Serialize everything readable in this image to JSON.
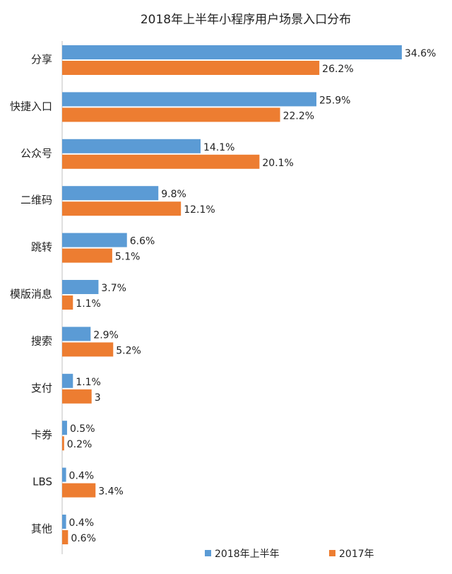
{
  "chart_data": {
    "type": "bar",
    "orientation": "horizontal",
    "title": "2018年上半年小程序用户场景入口分布",
    "categories": [
      "分享",
      "快捷入口",
      "公众号",
      "二维码",
      "跳转",
      "模版消息",
      "搜索",
      "支付",
      "卡券",
      "LBS",
      "其他"
    ],
    "series": [
      {
        "name": "2018年上半年",
        "color": "#5b9bd5",
        "values": [
          34.6,
          25.9,
          14.1,
          9.8,
          6.6,
          3.7,
          2.9,
          1.1,
          0.5,
          0.4,
          0.4
        ],
        "labels": [
          "34.6%",
          "25.9%",
          "14.1%",
          "9.8%",
          "6.6%",
          "3.7%",
          "2.9%",
          "1.1%",
          "0.5%",
          "0.4%",
          "0.4%"
        ]
      },
      {
        "name": "2017年",
        "color": "#ed7d31",
        "values": [
          26.2,
          22.2,
          20.1,
          12.1,
          5.1,
          1.1,
          5.2,
          3,
          0.2,
          3.4,
          0.6
        ],
        "labels": [
          "26.2%",
          "22.2%",
          "20.1%",
          "12.1%",
          "5.1%",
          "1.1%",
          "5.2%",
          "3",
          "0.2%",
          "3.4%",
          "0.6%"
        ]
      }
    ],
    "legend_position": "bottom-right",
    "grid": false
  }
}
